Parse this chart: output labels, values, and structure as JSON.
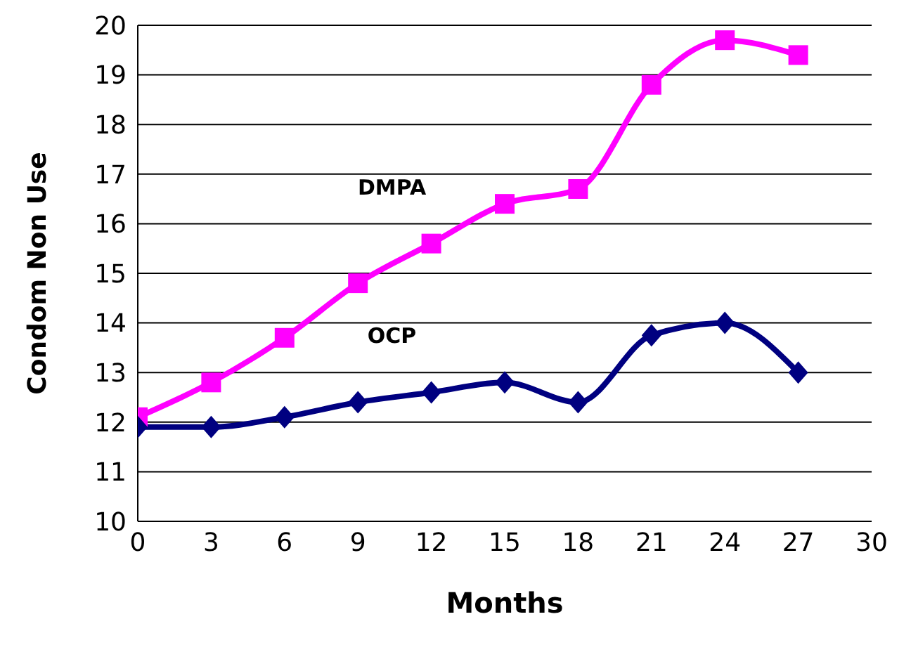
{
  "chart_data": {
    "type": "line",
    "xlabel": "Months",
    "ylabel": "Condom Non Use",
    "x": [
      0,
      3,
      6,
      9,
      12,
      15,
      18,
      21,
      24,
      27
    ],
    "series": [
      {
        "name": "DMPA",
        "color": "#ff00ff",
        "marker": "square",
        "values": [
          12.1,
          12.8,
          13.7,
          14.8,
          15.6,
          16.4,
          16.7,
          18.8,
          19.7,
          19.4
        ]
      },
      {
        "name": "OCP",
        "color": "#000080",
        "marker": "diamond",
        "values": [
          11.9,
          11.9,
          12.1,
          12.4,
          12.6,
          12.8,
          12.4,
          13.75,
          14.0,
          13.0
        ]
      }
    ],
    "xlim": [
      0,
      30
    ],
    "xticks": [
      0,
      3,
      6,
      9,
      12,
      15,
      18,
      21,
      24,
      27,
      30
    ],
    "ylim": [
      10,
      20
    ],
    "yticks": [
      10,
      11,
      12,
      13,
      14,
      15,
      16,
      17,
      18,
      19,
      20
    ],
    "grid": "y",
    "legend": false,
    "line_style": "solid"
  }
}
